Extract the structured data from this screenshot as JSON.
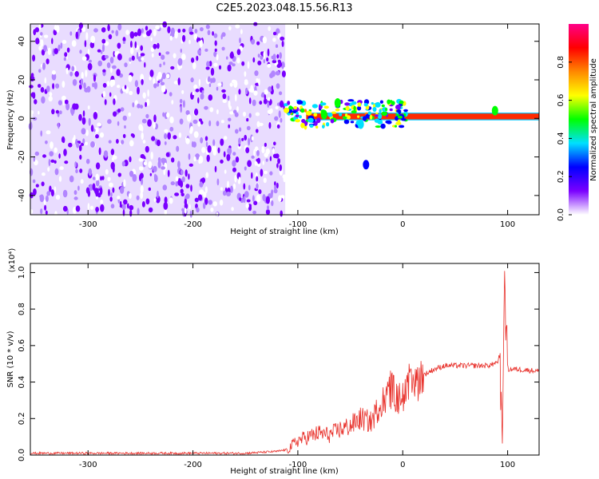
{
  "title": "C2E5.2023.048.15.56.R13",
  "chart_data": [
    {
      "type": "heatmap",
      "xlabel": "Height of straight line (km)",
      "ylabel": "Frequency (Hz)",
      "xlim": [
        -355,
        130
      ],
      "ylim": [
        -50,
        49
      ],
      "x_ticks": [
        -300,
        -200,
        -100,
        0,
        100
      ],
      "y_ticks": [
        -40,
        -20,
        0,
        20,
        40
      ],
      "colorbar": {
        "label": "Normalized spectral amplitude",
        "range": [
          0,
          1
        ],
        "ticks": [
          0.0,
          0.2,
          0.4,
          0.6,
          0.8
        ],
        "tick_labels": [
          "0.0",
          "0.2",
          "0.4",
          "0.6",
          "0.8"
        ],
        "colors": [
          "#ffffff",
          "#7a00ff",
          "#0000ff",
          "#00e0ff",
          "#00ff00",
          "#ffff00",
          "#ff8800",
          "#ff0000",
          "#ff0088"
        ]
      },
      "regions": [
        {
          "name": "noise",
          "x_range": [
            -355,
            -112
          ],
          "y_range": [
            -50,
            49
          ]
        },
        {
          "name": "signal",
          "x_range": [
            -112,
            130
          ],
          "center_hz": 1,
          "width_hz": 4
        }
      ],
      "features": [
        {
          "x": -62,
          "y": 8,
          "level": 0.5
        },
        {
          "x": -75,
          "y": 2,
          "level": 0.45
        },
        {
          "x": -40,
          "y": -3,
          "level": 0.4
        },
        {
          "x": -35,
          "y": -24,
          "level": 0.3
        },
        {
          "x": 88,
          "y": 4,
          "level": 0.5
        }
      ]
    },
    {
      "type": "line",
      "xlabel": "Height of straight line (km)",
      "ylabel": "SNR (10 * v/v)",
      "y_multiplier": "(x10⁴)",
      "xlim": [
        -355,
        130
      ],
      "ylim": [
        0,
        1.05
      ],
      "x_ticks": [
        -300,
        -200,
        -100,
        0,
        100
      ],
      "y_ticks": [
        0.0,
        0.2,
        0.4,
        0.6,
        0.8,
        1.0
      ],
      "y_tick_labels": [
        "0.0",
        "0.2",
        "0.4",
        "0.6",
        "0.8",
        "1.0"
      ],
      "series": [
        {
          "color": "#e8302a",
          "x": [
            -355,
            -300,
            -250,
            -200,
            -150,
            -120,
            -110,
            -100,
            -90,
            -80,
            -70,
            -60,
            -50,
            -40,
            -30,
            -20,
            -10,
            -5,
            0,
            10,
            20,
            30,
            40,
            60,
            80,
            90,
            93,
            95,
            97,
            100,
            110,
            130
          ],
          "y": [
            0.01,
            0.01,
            0.01,
            0.01,
            0.01,
            0.02,
            0.03,
            0.08,
            0.1,
            0.12,
            0.11,
            0.14,
            0.16,
            0.2,
            0.18,
            0.3,
            0.36,
            0.3,
            0.33,
            0.38,
            0.44,
            0.47,
            0.49,
            0.49,
            0.49,
            0.5,
            0.56,
            0.05,
            1.02,
            0.47,
            0.47,
            0.46
          ]
        }
      ]
    }
  ]
}
